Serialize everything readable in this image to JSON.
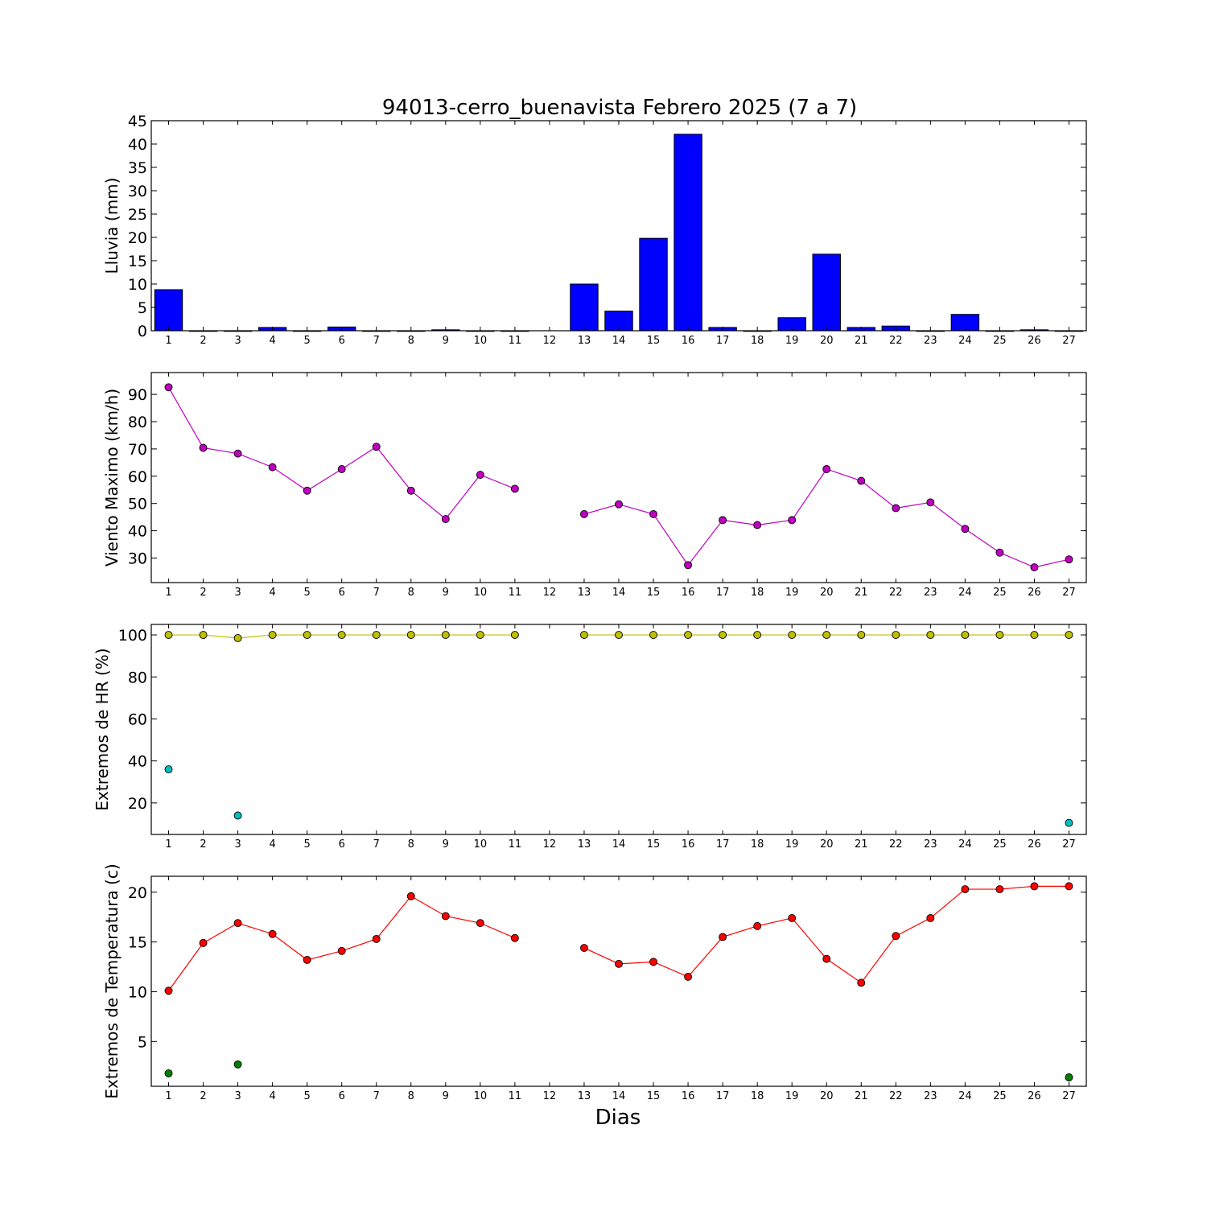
{
  "title": "94013-cerro_buenavista Febrero 2025  (7 a 7)",
  "xlabel": "Dias",
  "chart_data": [
    {
      "type": "bar",
      "ylabel": "Lluvia (mm)",
      "xlim": [
        0.5,
        27.5
      ],
      "ylim": [
        0,
        45
      ],
      "yticks": [
        0,
        5,
        10,
        15,
        20,
        25,
        30,
        35,
        40,
        45
      ],
      "xticks": [
        1,
        2,
        3,
        4,
        5,
        6,
        7,
        8,
        9,
        10,
        11,
        12,
        13,
        14,
        15,
        16,
        17,
        18,
        19,
        20,
        21,
        22,
        23,
        24,
        25,
        26,
        27
      ],
      "grid": false,
      "color": "#0000ff",
      "x": [
        1,
        2,
        3,
        4,
        5,
        6,
        7,
        8,
        9,
        10,
        11,
        12,
        13,
        14,
        15,
        16,
        17,
        18,
        19,
        20,
        21,
        22,
        23,
        24,
        25,
        26,
        27
      ],
      "values": [
        8.8,
        0,
        0,
        0.7,
        0,
        0.8,
        0,
        0,
        0.2,
        0,
        0,
        null,
        10.0,
        4.2,
        19.8,
        42.1,
        0.7,
        0,
        2.8,
        16.4,
        0.7,
        1.0,
        0,
        3.5,
        0,
        0.2,
        0
      ]
    },
    {
      "type": "line",
      "ylabel": "Viento Maximo (km/h)",
      "xlim": [
        0.5,
        27.5
      ],
      "ylim": [
        21,
        98
      ],
      "yticks": [
        30,
        40,
        50,
        60,
        70,
        80,
        90
      ],
      "xticks": [
        1,
        2,
        3,
        4,
        5,
        6,
        7,
        8,
        9,
        10,
        11,
        12,
        13,
        14,
        15,
        16,
        17,
        18,
        19,
        20,
        21,
        22,
        23,
        24,
        25,
        26,
        27
      ],
      "grid": false,
      "series": [
        {
          "color": "#bf00bf",
          "marker_color": "#bf00bf",
          "line": true,
          "x": [
            1,
            2,
            3,
            4,
            5,
            6,
            7,
            8,
            9,
            10,
            11,
            12,
            13,
            14,
            15,
            16,
            17,
            18,
            19,
            20,
            21,
            22,
            23,
            24,
            25,
            26,
            27
          ],
          "y": [
            92.6,
            70.4,
            68.3,
            63.3,
            54.7,
            62.6,
            70.8,
            54.7,
            44.3,
            60.5,
            55.4,
            null,
            46.1,
            49.7,
            46.1,
            27.4,
            43.9,
            42.1,
            43.9,
            62.6,
            58.3,
            48.3,
            50.4,
            40.7,
            32.0,
            26.6,
            29.5
          ]
        }
      ]
    },
    {
      "type": "line",
      "ylabel": "Extremos de HR (%)",
      "xlim": [
        0.5,
        27.5
      ],
      "ylim": [
        5,
        105
      ],
      "yticks": [
        20,
        40,
        60,
        80,
        100
      ],
      "xticks": [
        1,
        2,
        3,
        4,
        5,
        6,
        7,
        8,
        9,
        10,
        11,
        12,
        13,
        14,
        15,
        16,
        17,
        18,
        19,
        20,
        21,
        22,
        23,
        24,
        25,
        26,
        27
      ],
      "grid": false,
      "series": [
        {
          "color": "#bfbf00",
          "marker_color": "#bfbf00",
          "line": true,
          "x": [
            1,
            2,
            3,
            4,
            5,
            6,
            7,
            8,
            9,
            10,
            11,
            12,
            13,
            14,
            15,
            16,
            17,
            18,
            19,
            20,
            21,
            22,
            23,
            24,
            25,
            26,
            27
          ],
          "y": [
            100,
            100,
            98.5,
            100,
            100,
            100,
            100,
            100,
            100,
            100,
            100,
            null,
            100,
            100,
            100,
            100,
            100,
            100,
            100,
            100,
            100,
            100,
            100,
            100,
            100,
            100,
            100
          ]
        },
        {
          "color": "#00bfbf",
          "marker_color": "#00bfbf",
          "line": false,
          "x": [
            1,
            3,
            27
          ],
          "y": [
            36,
            14,
            10.5
          ]
        }
      ]
    },
    {
      "type": "line",
      "ylabel": "Extremos de Temperatura (c)",
      "xlim": [
        0.5,
        27.5
      ],
      "ylim": [
        0.5,
        21.6
      ],
      "yticks": [
        5,
        10,
        15,
        20
      ],
      "xticks": [
        1,
        2,
        3,
        4,
        5,
        6,
        7,
        8,
        9,
        10,
        11,
        12,
        13,
        14,
        15,
        16,
        17,
        18,
        19,
        20,
        21,
        22,
        23,
        24,
        25,
        26,
        27
      ],
      "grid": false,
      "series": [
        {
          "color": "#ff0000",
          "marker_color": "#ff0000",
          "line": true,
          "x": [
            1,
            2,
            3,
            4,
            5,
            6,
            7,
            8,
            9,
            10,
            11,
            12,
            13,
            14,
            15,
            16,
            17,
            18,
            19,
            20,
            21,
            22,
            23,
            24,
            25,
            26,
            27
          ],
          "y": [
            10.1,
            14.9,
            16.9,
            15.8,
            13.2,
            14.1,
            15.3,
            19.6,
            17.6,
            16.9,
            15.4,
            null,
            14.4,
            12.8,
            13.0,
            11.5,
            15.5,
            16.6,
            17.4,
            13.3,
            10.9,
            15.6,
            17.4,
            20.3,
            20.3,
            20.6,
            20.6
          ]
        },
        {
          "color": "#008000",
          "marker_color": "#008000",
          "line": false,
          "x": [
            1,
            3,
            27
          ],
          "y": [
            1.8,
            2.7,
            1.4
          ]
        }
      ]
    }
  ]
}
